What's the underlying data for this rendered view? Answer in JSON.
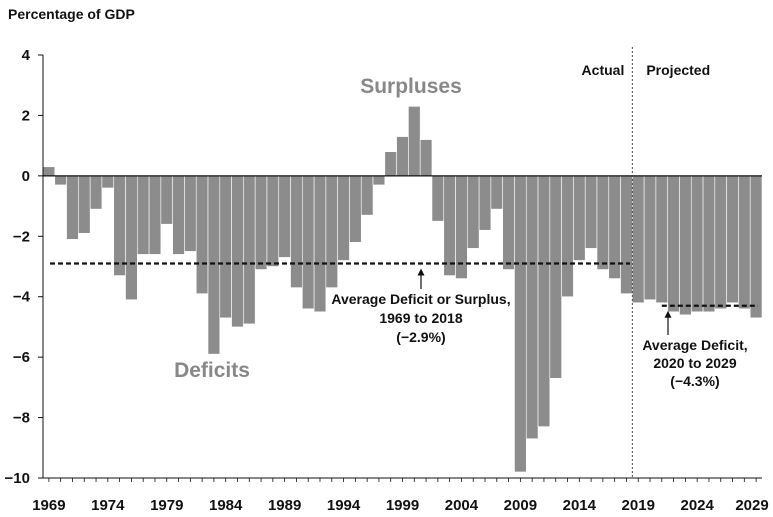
{
  "chart_data": {
    "type": "bar",
    "title": "",
    "ylabel": "Percentage of GDP",
    "xlabel": "",
    "ylim": [
      -10,
      4
    ],
    "yticks": [
      4,
      2,
      0,
      -2,
      -4,
      -6,
      -8,
      -10
    ],
    "ytick_labels": [
      "4",
      "2",
      "0",
      "−2",
      "−4",
      "−6",
      "−8",
      "−10"
    ],
    "xtick_labels": [
      "1969",
      "1974",
      "1979",
      "1984",
      "1989",
      "1994",
      "1999",
      "2004",
      "2009",
      "2014",
      "2019",
      "2024",
      "2029"
    ],
    "grid": false,
    "colors": {
      "bar": "#8c8c8c",
      "bar_edge": "#ffffff",
      "axis": "#111111",
      "big_label": "#888888"
    },
    "years": [
      1969,
      1970,
      1971,
      1972,
      1973,
      1974,
      1975,
      1976,
      1977,
      1978,
      1979,
      1980,
      1981,
      1982,
      1983,
      1984,
      1985,
      1986,
      1987,
      1988,
      1989,
      1990,
      1991,
      1992,
      1993,
      1994,
      1995,
      1996,
      1997,
      1998,
      1999,
      2000,
      2001,
      2002,
      2003,
      2004,
      2005,
      2006,
      2007,
      2008,
      2009,
      2010,
      2011,
      2012,
      2013,
      2014,
      2015,
      2016,
      2017,
      2018,
      2019,
      2020,
      2021,
      2022,
      2023,
      2024,
      2025,
      2026,
      2027,
      2028,
      2029
    ],
    "values": [
      0.3,
      -0.3,
      -2.1,
      -1.9,
      -1.1,
      -0.4,
      -3.3,
      -4.1,
      -2.6,
      -2.6,
      -1.6,
      -2.6,
      -2.5,
      -3.9,
      -5.9,
      -4.7,
      -5.0,
      -4.9,
      -3.1,
      -3.0,
      -2.7,
      -3.7,
      -4.4,
      -4.5,
      -3.7,
      -2.8,
      -2.2,
      -1.3,
      -0.3,
      0.8,
      1.3,
      2.3,
      1.2,
      -1.5,
      -3.3,
      -3.4,
      -2.4,
      -1.8,
      -1.1,
      -3.1,
      -9.8,
      -8.7,
      -8.3,
      -6.7,
      -4.0,
      -2.8,
      -2.4,
      -3.1,
      -3.4,
      -3.9,
      -4.2,
      -4.1,
      -4.2,
      -4.5,
      -4.6,
      -4.5,
      -4.5,
      -4.4,
      -4.2,
      -4.4,
      -4.7
    ],
    "divider_year": 2018.5,
    "period_labels": {
      "actual": "Actual",
      "projected": "Projected"
    },
    "labels": {
      "surpluses": "Surpluses",
      "deficits": "Deficits"
    },
    "averages": [
      {
        "name": "Average Deficit or Surplus, 1969 to 2018",
        "value": -2.9,
        "from": 1969,
        "to": 2018,
        "lines": [
          "Average Deficit or Surplus,",
          "1969 to 2018",
          "(−2.9%)"
        ]
      },
      {
        "name": "Average Deficit, 2020 to 2029",
        "value": -4.3,
        "from": 2020,
        "to": 2029,
        "lines": [
          "Average Deficit,",
          "2020 to 2029",
          "(−4.3%)"
        ]
      }
    ]
  }
}
